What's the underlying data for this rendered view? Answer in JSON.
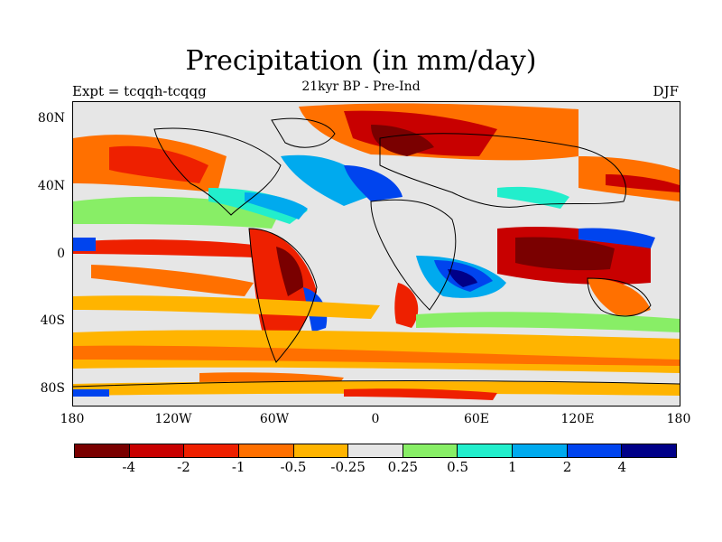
{
  "title": "Precipitation (in mm/day)",
  "subtitle": "21kyr BP - Pre-Ind",
  "left_label": "Expt = tcqqh-tcqqg",
  "right_label": "DJF",
  "lat_labels": [
    "80N",
    "40N",
    "0",
    "40S",
    "80S"
  ],
  "lon_labels": [
    "180",
    "120W",
    "60W",
    "0",
    "60E",
    "120E",
    "180"
  ],
  "colorbar": {
    "colors": [
      "#7a0000",
      "#c80000",
      "#ee2000",
      "#ff7000",
      "#ffb400",
      "#e6e6e6",
      "#88ee66",
      "#22eecc",
      "#00aaee",
      "#0044ee",
      "#000088"
    ],
    "labels": [
      "-4",
      "-2",
      "-1",
      "-0.5",
      "-0.25",
      "0.25",
      "0.5",
      "1",
      "2",
      "4"
    ]
  }
}
